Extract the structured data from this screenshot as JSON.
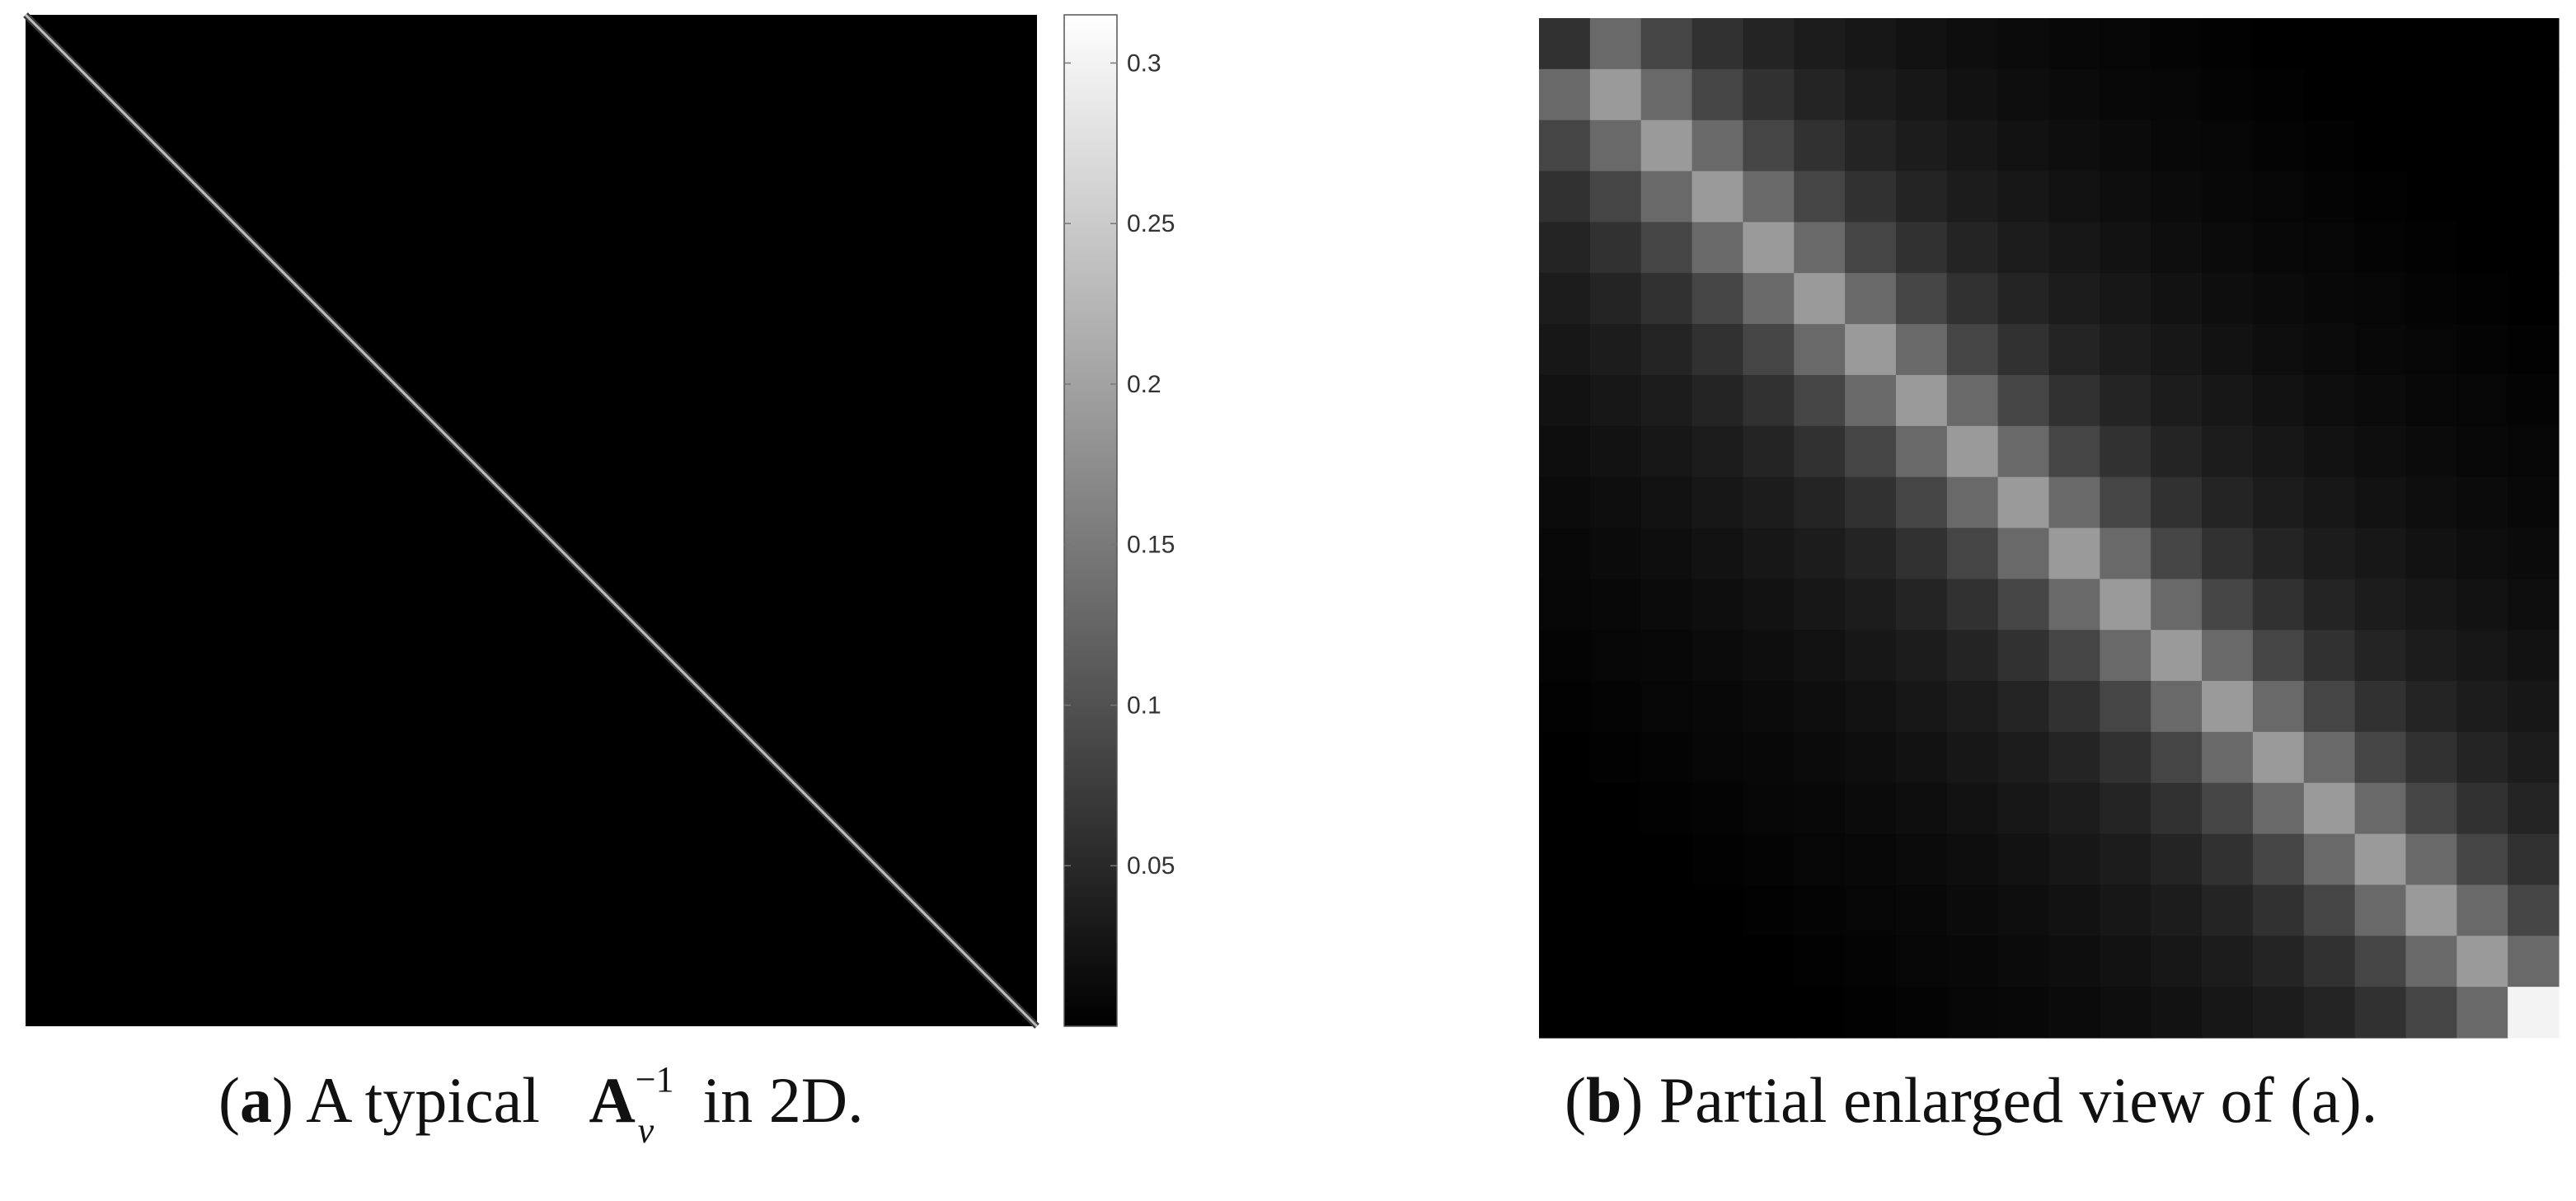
{
  "chart_data": [
    {
      "panel": "a",
      "type": "heatmap",
      "description_kind": "banded matrix (bright main diagonal, near-zero elsewhere)",
      "colormap": "gray",
      "colorbar": {
        "ticks": [
          0.05,
          0.1,
          0.15,
          0.2,
          0.25,
          0.3
        ],
        "tick_labels": [
          "0.05",
          "0.1",
          "0.15",
          "0.2",
          "0.25",
          "0.3"
        ],
        "range": [
          0,
          0.315
        ]
      },
      "diagonal_value": 0.2,
      "off_diagonal_value": 0
    },
    {
      "panel": "b",
      "type": "heatmap",
      "colormap": "gray",
      "size": 20,
      "diagonal_value": 0.19,
      "band_decay_offsets": [
        0,
        1,
        2,
        3,
        4,
        5,
        6,
        7,
        8,
        9,
        10,
        11,
        12,
        13
      ],
      "band_values": [
        0.19,
        0.13,
        0.085,
        0.06,
        0.045,
        0.035,
        0.028,
        0.022,
        0.017,
        0.013,
        0.01,
        0.007,
        0.005,
        0.003
      ],
      "corner_values": {
        "top_left": 0.06,
        "bottom_right": 0.3
      }
    }
  ],
  "captions": {
    "a": {
      "label": "a",
      "prefix": "(",
      "text_before": ") A typical",
      "matrix_symbol": "A",
      "superscript": "−1",
      "subscript": "v",
      "text_after": "in 2D."
    },
    "b": {
      "label": "b",
      "prefix": "(",
      "text": ") Partial enlarged view of (a)."
    }
  }
}
